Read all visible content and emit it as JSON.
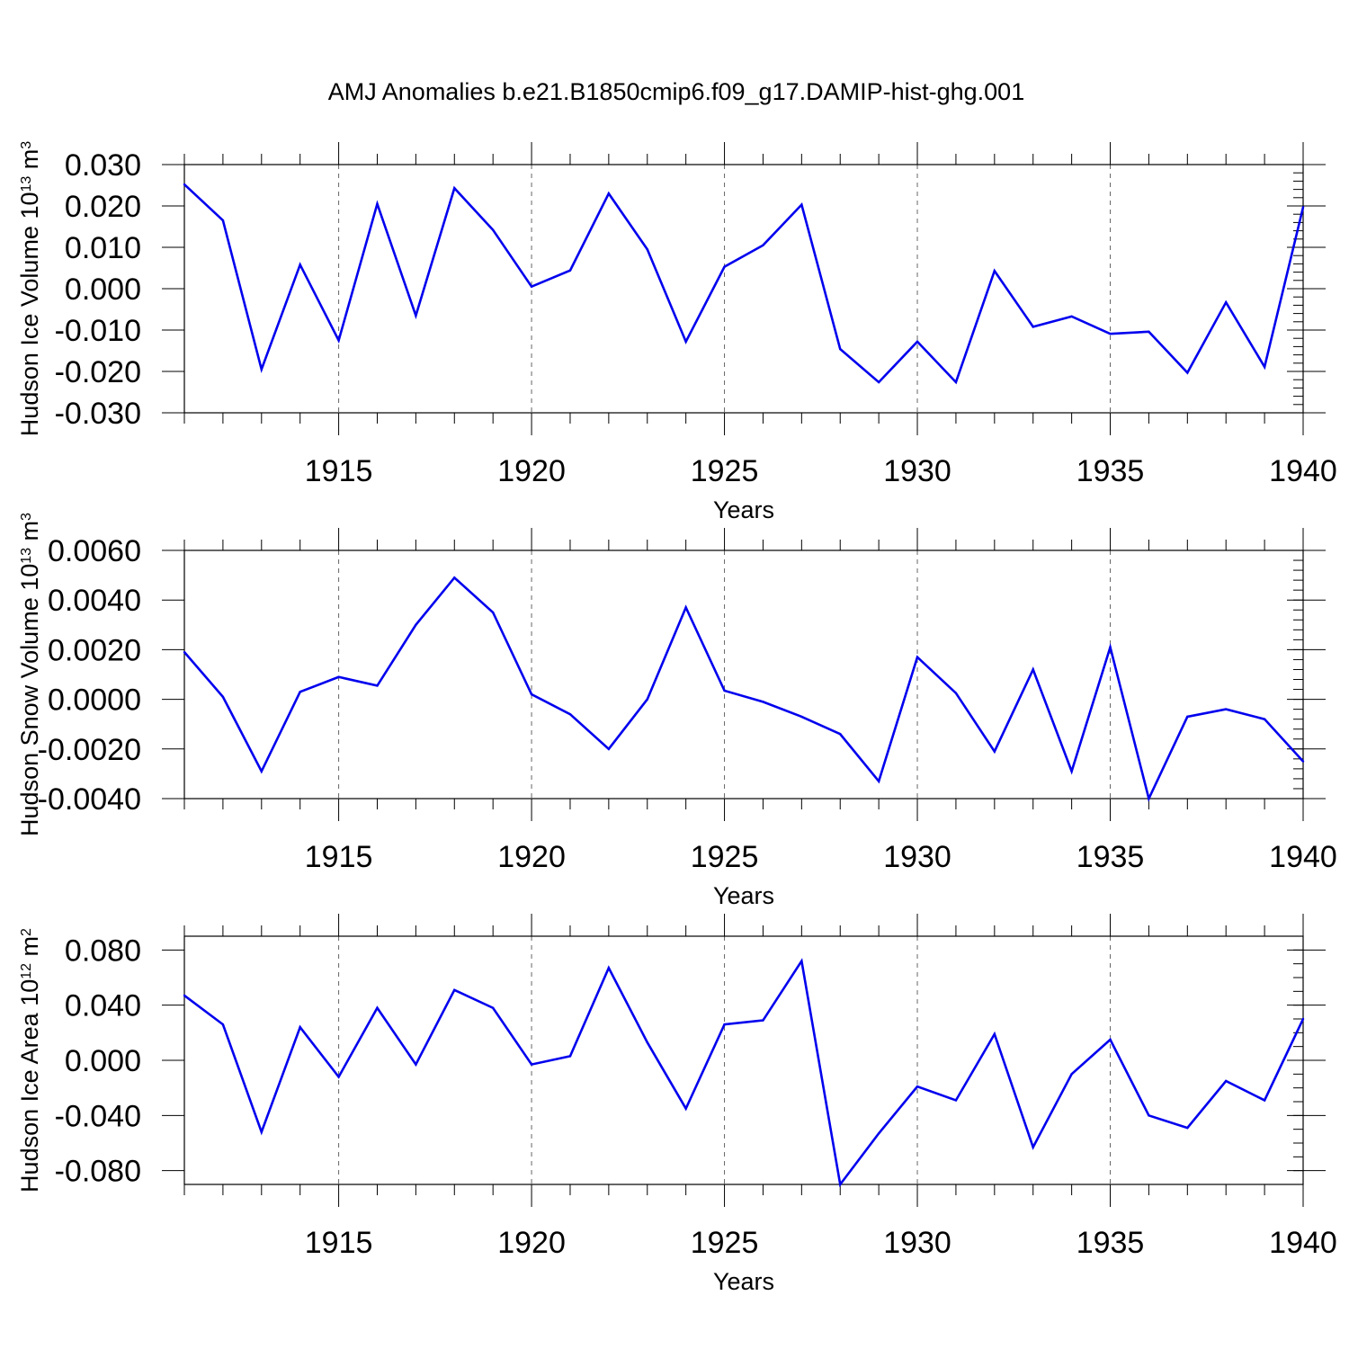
{
  "title": "AMJ Anomalies b.e21.B1850cmip6.f09_g17.DAMIP-hist-ghg.001",
  "line_color": "#0000ee",
  "chart_data": [
    {
      "type": "line",
      "title": "",
      "xlabel": "Years",
      "ylabel": "Hudson Ice Volume",
      "ylabel_unit_base": "10",
      "ylabel_unit_exp": "13",
      "ylabel_unit_sym": "m",
      "ylabel_unit_sym_exp": "3",
      "xlim": [
        1911,
        1940
      ],
      "ylim": [
        -0.03,
        0.03
      ],
      "yticks": [
        -0.03,
        -0.02,
        -0.01,
        0.0,
        0.01,
        0.02,
        0.03
      ],
      "ytick_labels": [
        "-0.030",
        "-0.020",
        "-0.010",
        "0.000",
        "0.010",
        "0.020",
        "0.030"
      ],
      "ytick_minor_step": 0.002,
      "xticks": [
        1915,
        1920,
        1925,
        1930,
        1935,
        1940
      ],
      "xtick_labels": [
        "1915",
        "1920",
        "1925",
        "1930",
        "1935",
        "1940"
      ],
      "grid": "vertical dashed at major x ticks",
      "x": [
        1911,
        1912,
        1913,
        1914,
        1915,
        1916,
        1917,
        1918,
        1919,
        1920,
        1921,
        1922,
        1923,
        1924,
        1925,
        1926,
        1927,
        1928,
        1929,
        1930,
        1931,
        1932,
        1933,
        1934,
        1935,
        1936,
        1937,
        1938,
        1939,
        1940
      ],
      "y": [
        0.0252,
        0.0165,
        -0.0195,
        0.0058,
        -0.0125,
        0.0205,
        -0.0065,
        0.0243,
        0.0142,
        0.0005,
        0.0044,
        0.023,
        0.0095,
        -0.0128,
        0.0053,
        0.0105,
        0.0203,
        -0.0146,
        -0.0226,
        -0.0128,
        -0.0226,
        0.0043,
        -0.0092,
        -0.0067,
        -0.0109,
        -0.0104,
        -0.0203,
        -0.0033,
        -0.0189,
        0.0197
      ]
    },
    {
      "type": "line",
      "title": "",
      "xlabel": "Years",
      "ylabel": "Hudson Snow Volume",
      "ylabel_unit_base": "10",
      "ylabel_unit_exp": "13",
      "ylabel_unit_sym": "m",
      "ylabel_unit_sym_exp": "3",
      "xlim": [
        1911,
        1940
      ],
      "ylim": [
        -0.004,
        0.006
      ],
      "yticks": [
        -0.004,
        -0.002,
        0.0,
        0.002,
        0.004,
        0.006
      ],
      "ytick_labels": [
        "-0.0040",
        "-0.0020",
        "0.0000",
        "0.0020",
        "0.0040",
        "0.0060"
      ],
      "ytick_minor_step": 0.0004,
      "xticks": [
        1915,
        1920,
        1925,
        1930,
        1935,
        1940
      ],
      "xtick_labels": [
        "1915",
        "1920",
        "1925",
        "1930",
        "1935",
        "1940"
      ],
      "grid": "vertical dashed at major x ticks",
      "x": [
        1911,
        1912,
        1913,
        1914,
        1915,
        1916,
        1917,
        1918,
        1919,
        1920,
        1921,
        1922,
        1923,
        1924,
        1925,
        1926,
        1927,
        1928,
        1929,
        1930,
        1931,
        1932,
        1933,
        1934,
        1935,
        1936,
        1937,
        1938,
        1939,
        1940
      ],
      "y": [
        0.0019,
        0.0001,
        -0.0029,
        0.0003,
        0.0009,
        0.00055,
        0.003,
        0.0049,
        0.0035,
        0.0002,
        -0.0006,
        -0.002,
        0.0,
        0.0037,
        0.00035,
        -0.0001,
        -0.0007,
        -0.0014,
        -0.0033,
        0.0017,
        0.00025,
        -0.0021,
        0.0012,
        -0.0029,
        0.0021,
        -0.004,
        -0.0007,
        -0.0004,
        -0.0008,
        -0.0025
      ]
    },
    {
      "type": "line",
      "title": "",
      "xlabel": "Years",
      "ylabel": "Hudson Ice Area",
      "ylabel_unit_base": "10",
      "ylabel_unit_exp": "12",
      "ylabel_unit_sym": "m",
      "ylabel_unit_sym_exp": "2",
      "xlim": [
        1911,
        1940
      ],
      "ylim": [
        -0.09,
        0.09
      ],
      "yticks": [
        -0.08,
        -0.04,
        0.0,
        0.04,
        0.08
      ],
      "ytick_labels": [
        "-0.080",
        "-0.040",
        "0.000",
        "0.040",
        "0.080"
      ],
      "ytick_minor_step": 0.01,
      "xticks": [
        1915,
        1920,
        1925,
        1930,
        1935,
        1940
      ],
      "xtick_labels": [
        "1915",
        "1920",
        "1925",
        "1930",
        "1935",
        "1940"
      ],
      "grid": "vertical dashed at major x ticks",
      "x": [
        1911,
        1912,
        1913,
        1914,
        1915,
        1916,
        1917,
        1918,
        1919,
        1920,
        1921,
        1922,
        1923,
        1924,
        1925,
        1926,
        1927,
        1928,
        1929,
        1930,
        1931,
        1932,
        1933,
        1934,
        1935,
        1936,
        1937,
        1938,
        1939,
        1940
      ],
      "y": [
        0.047,
        0.026,
        -0.052,
        0.024,
        -0.012,
        0.038,
        -0.003,
        0.051,
        0.038,
        -0.003,
        0.003,
        0.067,
        0.013,
        -0.035,
        0.026,
        0.029,
        0.072,
        -0.09,
        -0.053,
        -0.019,
        -0.029,
        0.019,
        -0.063,
        -0.01,
        0.015,
        -0.04,
        -0.049,
        -0.015,
        -0.029,
        0.03
      ]
    }
  ]
}
